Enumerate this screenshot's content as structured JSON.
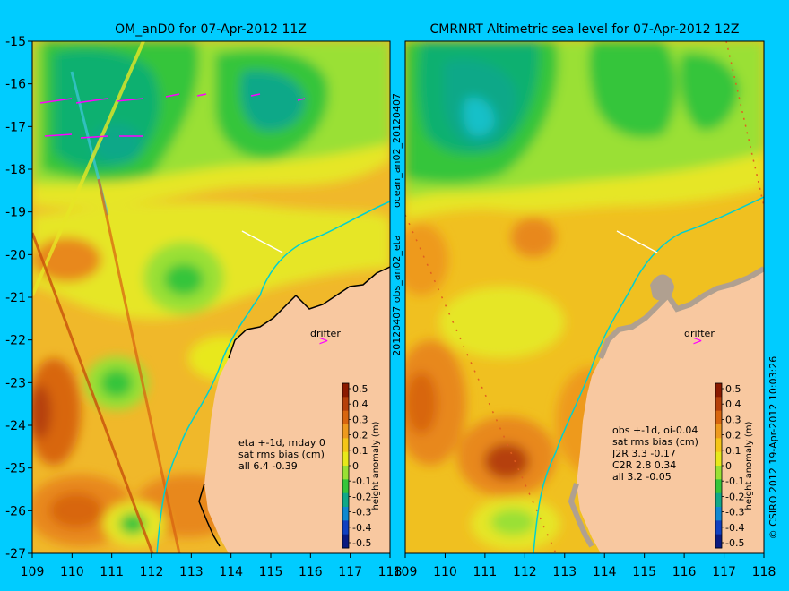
{
  "left_panel": {
    "title": "OM_anD0 for 07-Apr-2012 11Z",
    "vertical_label": "20120407 obs_an02_eta",
    "annotation": [
      "eta +-1d, mday 0",
      "sat rms bias (cm)",
      "all 6.4 -0.39"
    ]
  },
  "right_panel": {
    "title": "CMRNRT Altimetric sea level  for 07-Apr-2012 12Z",
    "vertical_label": "ocean_an02_20120407",
    "annotation": [
      "obs +-1d, oi-0.04",
      "sat rms bias (cm)",
      "J2R   3.3 -0.17",
      "C2R   2.8 0.34",
      "all 3.2 -0.05"
    ]
  },
  "drifter_label": "drifter",
  "copyright": "© CSIRO 2012  19-Apr-2012 10:03:26",
  "colorbar": {
    "label": "height anomaly (m)",
    "ticks": [
      "0.5",
      "0.4",
      "0.3",
      "0.2",
      "0.1",
      "0",
      "-0.1",
      "-0.2",
      "-0.3",
      "-0.4",
      "-0.5"
    ],
    "colors": [
      "#8b1a00",
      "#b5400a",
      "#d8660f",
      "#ee9a1e",
      "#f5c518",
      "#e8e81a",
      "#9ae034",
      "#35c53a",
      "#10a888",
      "#1088d0",
      "#1040c0",
      "#0a1a80"
    ]
  },
  "axes": {
    "x_ticks": [
      "109",
      "110",
      "111",
      "112",
      "113",
      "114",
      "115",
      "116",
      "117",
      "118"
    ],
    "y_ticks": [
      "-15",
      "-16",
      "-17",
      "-18",
      "-19",
      "-20",
      "-21",
      "-22",
      "-23",
      "-24",
      "-25",
      "-26",
      "-27"
    ]
  },
  "colors": {
    "background": "#00ccff",
    "land": "#f8c8a0",
    "drifter": "#ff00ff"
  }
}
